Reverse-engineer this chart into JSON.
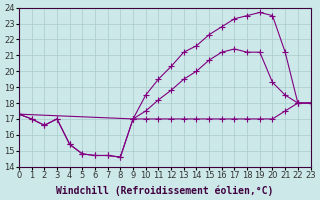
{
  "background_color": "#cce8e8",
  "plot_bg_color": "#cce8e8",
  "line_color": "#800080",
  "grid_color": "#aacccc",
  "xlabel": "Windchill (Refroidissement éolien,°C)",
  "xlim": [
    0,
    23
  ],
  "ylim": [
    14,
    24
  ],
  "yticks": [
    14,
    15,
    16,
    17,
    18,
    19,
    20,
    21,
    22,
    23,
    24
  ],
  "xticks": [
    0,
    1,
    2,
    3,
    4,
    5,
    6,
    7,
    8,
    9,
    10,
    11,
    12,
    13,
    14,
    15,
    16,
    17,
    18,
    19,
    20,
    21,
    22,
    23
  ],
  "line1_x": [
    0,
    1,
    2,
    3,
    4,
    5,
    6,
    7,
    8,
    9,
    10,
    11,
    12,
    13,
    14,
    15,
    16,
    17,
    18,
    19,
    20,
    21,
    22,
    23
  ],
  "line1_y": [
    17.3,
    17.0,
    16.6,
    17.0,
    15.4,
    14.8,
    14.7,
    14.7,
    14.6,
    17.0,
    17.0,
    17.0,
    17.0,
    17.0,
    17.0,
    17.0,
    17.0,
    17.0,
    17.0,
    17.0,
    17.0,
    17.5,
    18.0,
    18.0
  ],
  "line2_x": [
    0,
    1,
    2,
    3,
    4,
    5,
    6,
    7,
    8,
    9,
    10,
    11,
    12,
    13,
    14,
    15,
    16,
    17,
    18,
    19,
    20,
    21,
    22,
    23
  ],
  "line2_y": [
    17.3,
    17.0,
    16.6,
    17.0,
    15.4,
    14.8,
    14.7,
    14.7,
    14.6,
    17.0,
    17.5,
    18.2,
    18.8,
    19.5,
    20.0,
    20.7,
    21.2,
    21.4,
    21.2,
    21.2,
    19.3,
    18.5,
    18.0,
    18.0
  ],
  "line3_x": [
    0,
    9,
    10,
    11,
    12,
    13,
    14,
    15,
    16,
    17,
    18,
    19,
    20,
    21,
    22,
    23
  ],
  "line3_y": [
    17.3,
    17.0,
    18.5,
    19.5,
    20.3,
    21.2,
    21.6,
    22.3,
    22.8,
    23.3,
    23.5,
    23.7,
    23.5,
    21.2,
    18.0,
    18.0
  ],
  "marker_size": 2.5,
  "linewidth": 0.8,
  "tick_labelsize": 6,
  "xlabel_fontsize": 7
}
